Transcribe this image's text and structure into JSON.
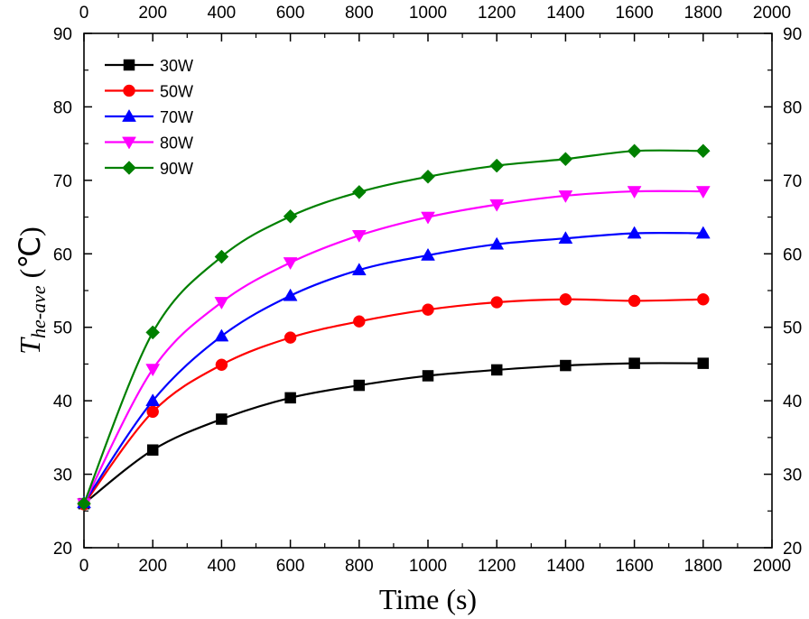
{
  "chart_data": {
    "type": "line",
    "xlabel": "Time (s)",
    "ylabel_main": "T",
    "ylabel_sub": "he-ave",
    "ylabel_unit": " (℃)",
    "xlim": [
      0,
      2000
    ],
    "ylim": [
      20,
      90
    ],
    "xticks": [
      0,
      200,
      400,
      600,
      800,
      1000,
      1200,
      1400,
      1600,
      1800,
      2000
    ],
    "yticks": [
      20,
      30,
      40,
      50,
      60,
      70,
      80,
      90
    ],
    "x": [
      0,
      200,
      400,
      600,
      800,
      1000,
      1200,
      1400,
      1600,
      1800
    ],
    "legend_position": "top-left",
    "series": [
      {
        "name": "30W",
        "color": "#000000",
        "marker": "square",
        "values": [
          26.0,
          33.3,
          37.5,
          40.4,
          42.1,
          43.4,
          44.2,
          44.8,
          45.1,
          45.1
        ]
      },
      {
        "name": "50W",
        "color": "#ff0000",
        "marker": "circle",
        "values": [
          25.9,
          38.5,
          44.9,
          48.6,
          50.8,
          52.4,
          53.4,
          53.8,
          53.6,
          53.8
        ]
      },
      {
        "name": "70W",
        "color": "#0000ff",
        "marker": "triangle-up",
        "values": [
          26.1,
          40.0,
          48.8,
          54.3,
          57.8,
          59.8,
          61.3,
          62.1,
          62.8,
          62.8
        ]
      },
      {
        "name": "80W",
        "color": "#ff00ff",
        "marker": "triangle-down",
        "values": [
          26.0,
          44.3,
          53.4,
          58.8,
          62.5,
          65.0,
          66.7,
          67.9,
          68.5,
          68.5
        ]
      },
      {
        "name": "90W",
        "color": "#008000",
        "marker": "diamond",
        "values": [
          26.0,
          49.3,
          59.6,
          65.1,
          68.4,
          70.5,
          72.0,
          72.9,
          74.0,
          74.0
        ]
      }
    ]
  }
}
